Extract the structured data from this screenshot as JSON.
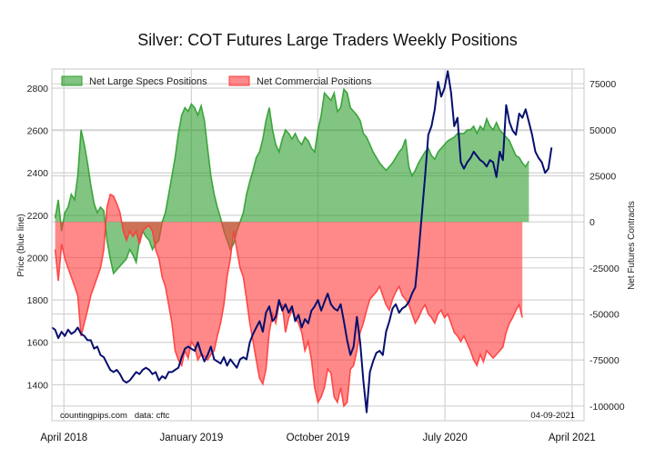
{
  "chart_data": {
    "type": "area",
    "title": "Silver: COT Futures Large Traders Weekly Positions",
    "ylabel_left": "Price (blue line)",
    "ylabel_right": "Net Futures Contracts",
    "left_axis": {
      "ticks": [
        1400,
        1600,
        1800,
        2000,
        2200,
        2400,
        2600,
        2800
      ],
      "ylim": [
        1230,
        2890
      ]
    },
    "right_axis": {
      "ticks": [
        75000,
        50000,
        25000,
        0,
        -25000,
        -50000,
        -75000,
        -100000
      ],
      "ylim": [
        -108000,
        83000
      ]
    },
    "x_ticks": [
      "April 2018",
      "January 2019",
      "October 2019",
      "July 2020",
      "April 2021"
    ],
    "x_range": [
      "2018-03-06",
      "2021-04-27"
    ],
    "x_tick_dates": [
      "2018-04-01",
      "2019-01-01",
      "2019-10-01",
      "2020-07-01",
      "2021-04-01"
    ],
    "grid": true,
    "legend_position": "top-left",
    "colors": {
      "specs": "#2e9e2e",
      "commercial": "#ff3b3b",
      "price": "#050f6e"
    },
    "series": [
      {
        "name": "Net Large Specs Positions",
        "kind": "area",
        "axis": "right",
        "start_date": "2018-03-13",
        "step_days": 7,
        "values": [
          2000,
          12000,
          -5000,
          5000,
          8000,
          15000,
          12000,
          25000,
          50000,
          42000,
          32000,
          20000,
          10000,
          5000,
          8000,
          6000,
          -10000,
          -20000,
          -28000,
          -26000,
          -24000,
          -22000,
          -20000,
          -15000,
          -18000,
          -22000,
          -10000,
          -5000,
          -8000,
          -10000,
          -15000,
          -12000,
          -10000,
          0,
          5000,
          15000,
          25000,
          35000,
          48000,
          58000,
          62000,
          60000,
          64000,
          62000,
          58000,
          63000,
          55000,
          40000,
          25000,
          15000,
          8000,
          2000,
          -5000,
          -10000,
          -15000,
          -12000,
          -5000,
          0,
          5000,
          15000,
          22000,
          28000,
          35000,
          38000,
          45000,
          55000,
          62000,
          50000,
          42000,
          38000,
          45000,
          50000,
          48000,
          45000,
          48000,
          44000,
          42000,
          46000,
          44000,
          40000,
          38000,
          50000,
          58000,
          70000,
          68000,
          66000,
          70000,
          60000,
          62000,
          72000,
          70000,
          62000,
          60000,
          58000,
          55000,
          48000,
          46000,
          42000,
          38000,
          35000,
          32000,
          30000,
          28000,
          30000,
          32000,
          35000,
          38000,
          40000,
          45000,
          30000,
          25000,
          28000,
          32000,
          35000,
          38000,
          40000,
          36000,
          34000,
          38000,
          40000,
          42000,
          44000,
          45000,
          46000,
          48000,
          48000,
          48000,
          50000,
          50000,
          52000,
          48000,
          52000,
          50000,
          56000,
          52000,
          50000,
          54000,
          50000,
          48000,
          46000,
          44000,
          40000,
          36000,
          35000,
          32000,
          30000,
          33000
        ]
      },
      {
        "name": "Net Commercial Positions",
        "kind": "area",
        "axis": "right",
        "start_date": "2018-03-13",
        "step_days": 7,
        "values": [
          -15000,
          -32000,
          -12000,
          -20000,
          -25000,
          -30000,
          -35000,
          -40000,
          -62000,
          -55000,
          -48000,
          -40000,
          -35000,
          -30000,
          -25000,
          -15000,
          8000,
          15000,
          14000,
          10000,
          5000,
          -5000,
          -10000,
          -5000,
          -8000,
          -5000,
          -12000,
          -5000,
          -3000,
          -2000,
          -5000,
          -15000,
          -20000,
          -30000,
          -35000,
          -45000,
          -55000,
          -70000,
          -75000,
          -78000,
          -70000,
          -74000,
          -65000,
          -68000,
          -75000,
          -72000,
          -73000,
          -75000,
          -72000,
          -70000,
          -62000,
          -55000,
          -45000,
          -30000,
          -20000,
          -5000,
          -15000,
          -25000,
          -30000,
          -42000,
          -55000,
          -65000,
          -75000,
          -85000,
          -88000,
          -80000,
          -60000,
          -50000,
          -55000,
          -45000,
          -45000,
          -60000,
          -52000,
          -48000,
          -52000,
          -55000,
          -60000,
          -70000,
          -65000,
          -75000,
          -90000,
          -98000,
          -95000,
          -90000,
          -80000,
          -82000,
          -95000,
          -98000,
          -90000,
          -100000,
          -98000,
          -80000,
          -78000,
          -70000,
          -60000,
          -55000,
          -48000,
          -42000,
          -40000,
          -38000,
          -35000,
          -40000,
          -45000,
          -48000,
          -42000,
          -38000,
          -35000,
          -40000,
          -42000,
          -45000,
          -50000,
          -55000,
          -52000,
          -48000,
          -45000,
          -50000,
          -52000,
          -55000,
          -50000,
          -48000,
          -52000,
          -50000,
          -55000,
          -60000,
          -62000,
          -65000,
          -62000,
          -66000,
          -70000,
          -75000,
          -78000,
          -72000,
          -76000,
          -70000,
          -72000,
          -74000,
          -72000,
          -70000,
          -68000,
          -60000,
          -55000,
          -52000,
          -48000,
          -45000,
          -52000
        ]
      },
      {
        "kind": "line",
        "axis": "left",
        "start_date": "2018-03-06",
        "step_days": 7,
        "values": [
          1670,
          1660,
          1620,
          1650,
          1630,
          1660,
          1640,
          1650,
          1670,
          1640,
          1630,
          1610,
          1610,
          1570,
          1580,
          1540,
          1530,
          1500,
          1470,
          1460,
          1470,
          1450,
          1420,
          1410,
          1420,
          1440,
          1460,
          1450,
          1470,
          1480,
          1470,
          1450,
          1460,
          1420,
          1440,
          1430,
          1460,
          1460,
          1470,
          1480,
          1530,
          1570,
          1580,
          1570,
          1560,
          1600,
          1550,
          1510,
          1540,
          1580,
          1520,
          1510,
          1500,
          1530,
          1490,
          1520,
          1500,
          1480,
          1520,
          1530,
          1520,
          1600,
          1640,
          1670,
          1700,
          1650,
          1740,
          1770,
          1700,
          1720,
          1800,
          1750,
          1780,
          1740,
          1770,
          1700,
          1730,
          1670,
          1710,
          1690,
          1750,
          1770,
          1800,
          1750,
          1790,
          1830,
          1780,
          1760,
          1750,
          1780,
          1700,
          1610,
          1540,
          1580,
          1720,
          1600,
          1420,
          1270,
          1460,
          1510,
          1550,
          1560,
          1540,
          1650,
          1700,
          1760,
          1780,
          1740,
          1760,
          1770,
          1790,
          1830,
          1860,
          2020,
          2200,
          2380,
          2580,
          2620,
          2700,
          2830,
          2760,
          2800,
          2880,
          2780,
          2620,
          2660,
          2450,
          2420,
          2450,
          2470,
          2500,
          2480,
          2460,
          2450,
          2430,
          2460,
          2450,
          2380,
          2500,
          2460,
          2720,
          2640,
          2600,
          2580,
          2680,
          2660,
          2700,
          2640,
          2580,
          2500,
          2470,
          2450,
          2400,
          2420,
          2520
        ]
      }
    ],
    "annotations": [
      "countingpips.com   data: cftc",
      "04-09-2021"
    ]
  }
}
